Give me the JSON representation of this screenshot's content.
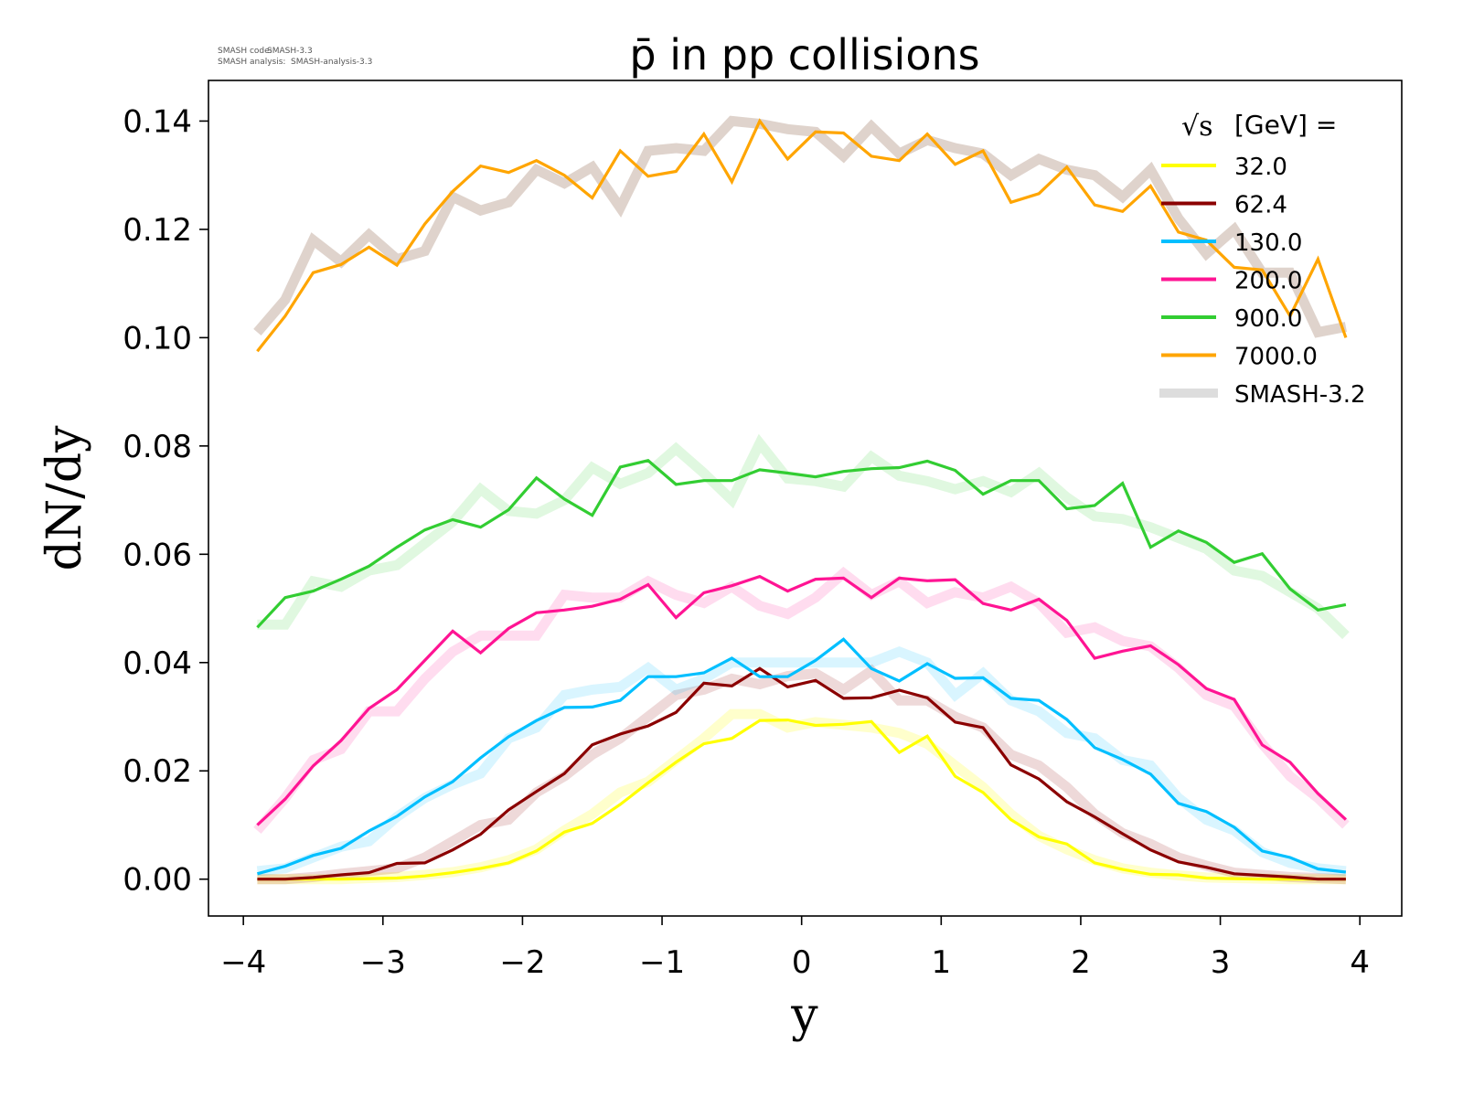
{
  "header": {
    "smash_code_label": "SMASH code:",
    "smash_code_value": "SMASH-3.3",
    "smash_analysis_label": "SMASH analysis:",
    "smash_analysis_value": "SMASH-analysis-3.3"
  },
  "chart_data": {
    "type": "line",
    "title": "p̄ in pp collisions",
    "xlabel": "y",
    "ylabel": "dN/dy",
    "xlim": [
      -4.25,
      4.3
    ],
    "ylim": [
      -0.0068,
      0.1475
    ],
    "xticks": [
      -4,
      -3,
      -2,
      -1,
      0,
      1,
      2,
      3,
      4
    ],
    "xtick_labels": [
      "−4",
      "−3",
      "−2",
      "−1",
      "0",
      "1",
      "2",
      "3",
      "4"
    ],
    "yticks": [
      0,
      0.02,
      0.04,
      0.06,
      0.08,
      0.1,
      0.12,
      0.14
    ],
    "ytick_labels": [
      "0.00",
      "0.02",
      "0.04",
      "0.06",
      "0.08",
      "0.10",
      "0.12",
      "0.14"
    ],
    "grid": false,
    "legend": {
      "title": "[GeV] =",
      "title_symbol": "√s",
      "placement": "top-right",
      "reference_label": "SMASH-3.2",
      "reference_color": "#dddddd"
    },
    "x": [
      -3.9,
      -3.7,
      -3.5,
      -3.3,
      -3.1,
      -2.9,
      -2.7,
      -2.5,
      -2.3,
      -2.1,
      -1.9,
      -1.7,
      -1.5,
      -1.3,
      -1.1,
      -0.9,
      -0.7,
      -0.5,
      -0.3,
      -0.1,
      0.1,
      0.3,
      0.5,
      0.7,
      0.9,
      1.1,
      1.3,
      1.5,
      1.7,
      1.9,
      2.1,
      2.3,
      2.5,
      2.7,
      2.9,
      3.1,
      3.3,
      3.5,
      3.7,
      3.9
    ],
    "series": [
      {
        "name": "32.0",
        "color": "#ffff00",
        "ref_color": "#ffff00",
        "ref_opacity": 0.2,
        "values": [
          0,
          0,
          0,
          0,
          0.0001,
          0.0002,
          0.0006,
          0.0012,
          0.002,
          0.003,
          0.0052,
          0.0087,
          0.0103,
          0.0138,
          0.0178,
          0.0216,
          0.025,
          0.026,
          0.0293,
          0.0294,
          0.0284,
          0.0286,
          0.0291,
          0.0234,
          0.0264,
          0.019,
          0.016,
          0.011,
          0.0078,
          0.0065,
          0.003,
          0.0018,
          0.0009,
          0.0008,
          0.0002,
          0.0001,
          0,
          0,
          0,
          0
        ],
        "reference": [
          0,
          0,
          0,
          0,
          0.0002,
          0.0004,
          0.0008,
          0.0013,
          0.0022,
          0.0035,
          0.0055,
          0.009,
          0.012,
          0.016,
          0.018,
          0.022,
          0.026,
          0.0305,
          0.0305,
          0.028,
          0.029,
          0.0285,
          0.028,
          0.027,
          0.025,
          0.021,
          0.017,
          0.012,
          0.008,
          0.0055,
          0.0035,
          0.002,
          0.0012,
          0.0007,
          0.0003,
          0.0002,
          0.0001,
          0,
          0,
          0
        ]
      },
      {
        "name": "62.4",
        "color": "#8b0000",
        "ref_color": "#8b0000",
        "ref_opacity": 0.15,
        "values": [
          0,
          0,
          0.0003,
          0.0008,
          0.0012,
          0.0029,
          0.003,
          0.0054,
          0.0083,
          0.0128,
          0.0162,
          0.0195,
          0.0248,
          0.0268,
          0.0283,
          0.0308,
          0.0362,
          0.0357,
          0.0389,
          0.0355,
          0.0367,
          0.0334,
          0.0335,
          0.0349,
          0.0335,
          0.029,
          0.028,
          0.0211,
          0.0185,
          0.0143,
          0.0115,
          0.0084,
          0.0054,
          0.0032,
          0.0022,
          0.001,
          0.0007,
          0.0004,
          0,
          0
        ],
        "reference": [
          0,
          0,
          0.0004,
          0.001,
          0.0015,
          0.002,
          0.004,
          0.007,
          0.01,
          0.011,
          0.016,
          0.019,
          0.023,
          0.026,
          0.03,
          0.034,
          0.035,
          0.037,
          0.036,
          0.0375,
          0.038,
          0.035,
          0.0385,
          0.033,
          0.033,
          0.03,
          0.028,
          0.023,
          0.021,
          0.017,
          0.012,
          0.0085,
          0.0065,
          0.004,
          0.0025,
          0.0012,
          0.0008,
          0.0004,
          0.0002,
          0
        ]
      },
      {
        "name": "130.0",
        "color": "#00bfff",
        "ref_color": "#00bfff",
        "ref_opacity": 0.15,
        "values": [
          0.001,
          0.0024,
          0.0044,
          0.0057,
          0.0089,
          0.0116,
          0.0152,
          0.018,
          0.0224,
          0.0263,
          0.0293,
          0.0317,
          0.0318,
          0.033,
          0.0374,
          0.0374,
          0.0381,
          0.0408,
          0.0374,
          0.0374,
          0.0404,
          0.0443,
          0.0389,
          0.0366,
          0.0398,
          0.0371,
          0.0372,
          0.0334,
          0.033,
          0.0295,
          0.0243,
          0.0221,
          0.0194,
          0.014,
          0.0125,
          0.0096,
          0.0052,
          0.004,
          0.0019,
          0.0013
        ],
        "reference": [
          0.0015,
          0.002,
          0.004,
          0.006,
          0.007,
          0.0115,
          0.015,
          0.0175,
          0.0195,
          0.026,
          0.028,
          0.034,
          0.035,
          0.0355,
          0.039,
          0.035,
          0.037,
          0.04,
          0.04,
          0.04,
          0.04,
          0.04,
          0.04,
          0.042,
          0.04,
          0.034,
          0.038,
          0.033,
          0.031,
          0.027,
          0.026,
          0.022,
          0.021,
          0.015,
          0.011,
          0.009,
          0.005,
          0.003,
          0.002,
          0.0015
        ]
      },
      {
        "name": "200.0",
        "color": "#ff1493",
        "ref_color": "#ff1493",
        "ref_opacity": 0.15,
        "values": [
          0.01,
          0.0148,
          0.0209,
          0.0256,
          0.0315,
          0.035,
          0.0404,
          0.0458,
          0.0418,
          0.0463,
          0.0492,
          0.0497,
          0.0504,
          0.0517,
          0.0544,
          0.0483,
          0.0529,
          0.0542,
          0.0559,
          0.0532,
          0.0554,
          0.0556,
          0.052,
          0.0556,
          0.0551,
          0.0553,
          0.0509,
          0.0497,
          0.0517,
          0.0478,
          0.0408,
          0.0421,
          0.0431,
          0.0396,
          0.0352,
          0.0332,
          0.0248,
          0.0216,
          0.0158,
          0.011
        ],
        "reference": [
          0.009,
          0.015,
          0.022,
          0.024,
          0.031,
          0.031,
          0.037,
          0.042,
          0.045,
          0.045,
          0.045,
          0.0525,
          0.052,
          0.052,
          0.055,
          0.0525,
          0.051,
          0.054,
          0.0505,
          0.049,
          0.052,
          0.0565,
          0.0525,
          0.055,
          0.051,
          0.053,
          0.052,
          0.054,
          0.051,
          0.0455,
          0.0465,
          0.044,
          0.043,
          0.039,
          0.034,
          0.032,
          0.025,
          0.019,
          0.015,
          0.01
        ]
      },
      {
        "name": "900.0",
        "color": "#32cd32",
        "ref_color": "#32cd32",
        "ref_opacity": 0.15,
        "values": [
          0.0465,
          0.052,
          0.0532,
          0.0554,
          0.0578,
          0.0613,
          0.0645,
          0.0664,
          0.065,
          0.0682,
          0.0741,
          0.0702,
          0.0672,
          0.0761,
          0.0773,
          0.0729,
          0.0736,
          0.0736,
          0.0756,
          0.075,
          0.0743,
          0.0753,
          0.0758,
          0.076,
          0.0772,
          0.0755,
          0.0711,
          0.0736,
          0.0736,
          0.0684,
          0.069,
          0.0731,
          0.0613,
          0.0643,
          0.0622,
          0.0585,
          0.0601,
          0.0536,
          0.0497,
          0.0507
        ],
        "reference": [
          0.047,
          0.047,
          0.055,
          0.054,
          0.057,
          0.058,
          0.062,
          0.066,
          0.072,
          0.068,
          0.0675,
          0.07,
          0.076,
          0.073,
          0.075,
          0.0795,
          0.075,
          0.07,
          0.0805,
          0.074,
          0.0735,
          0.0725,
          0.078,
          0.0745,
          0.0735,
          0.072,
          0.0735,
          0.0715,
          0.075,
          0.0705,
          0.067,
          0.0665,
          0.065,
          0.063,
          0.061,
          0.057,
          0.056,
          0.053,
          0.05,
          0.045
        ]
      },
      {
        "name": "7000.0",
        "color": "#ffa500",
        "ref_color": "#c9b5aa",
        "ref_opacity": 0.6,
        "values": [
          0.0975,
          0.104,
          0.112,
          0.1135,
          0.1167,
          0.1134,
          0.121,
          0.127,
          0.1317,
          0.1305,
          0.1327,
          0.13,
          0.1258,
          0.1345,
          0.1298,
          0.1307,
          0.1376,
          0.1288,
          0.14,
          0.133,
          0.138,
          0.1378,
          0.1335,
          0.1327,
          0.1376,
          0.132,
          0.1345,
          0.125,
          0.1266,
          0.1315,
          0.1245,
          0.1233,
          0.128,
          0.1195,
          0.118,
          0.113,
          0.1125,
          0.104,
          0.1145,
          0.1
        ],
        "reference": [
          0.101,
          0.107,
          0.118,
          0.114,
          0.119,
          0.1145,
          0.116,
          0.126,
          0.1235,
          0.125,
          0.131,
          0.1285,
          0.1315,
          0.124,
          0.1345,
          0.135,
          0.1345,
          0.14,
          0.1395,
          0.1385,
          0.138,
          0.1335,
          0.139,
          0.134,
          0.1365,
          0.135,
          0.134,
          0.13,
          0.133,
          0.131,
          0.13,
          0.126,
          0.131,
          0.122,
          0.1155,
          0.12,
          0.112,
          0.112,
          0.101,
          0.102
        ]
      }
    ]
  }
}
